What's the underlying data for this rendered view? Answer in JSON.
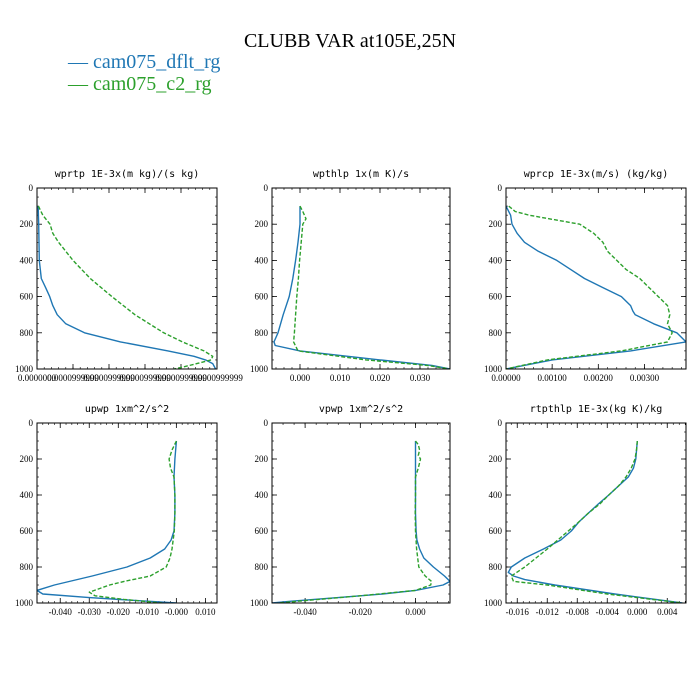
{
  "chart_data": {
    "title": "CLUBB VAR at105E,25N",
    "legend": [
      {
        "name": "cam075_dflt_rg",
        "color": "#1f77b4",
        "style": "solid"
      },
      {
        "name": "cam075_c2_rg",
        "color": "#2ca02c",
        "style": "dashed"
      }
    ],
    "ylim": [
      0,
      1000
    ],
    "yticks": [
      0,
      200,
      400,
      600,
      800,
      1000
    ],
    "y_inverted": true,
    "panels": [
      {
        "type": "line",
        "title": "wprtp  1E-3x(m kg)/(s kg)",
        "xlim": [
          0.0,
          0.0125
        ],
        "xticks": [
          0.0,
          0.0025,
          0.005,
          0.0075,
          0.01,
          0.0125
        ],
        "xticklabels": [
          "0.0000000",
          "0.0000999999",
          "0.0000999999",
          "0.0000999999",
          "0.0000999999",
          "0.0000999999"
        ],
        "series": [
          {
            "name": "cam075_dflt_rg",
            "y": [
              100,
              150,
              200,
              300,
              400,
              500,
              550,
              600,
              650,
              700,
              750,
              800,
              850,
              900,
              930,
              950,
              970,
              1000
            ],
            "x": [
              8e-05,
              0.0001,
              0.00012,
              0.00014,
              0.00016,
              0.0003,
              0.0006,
              0.00088,
              0.0011,
              0.0014,
              0.002,
              0.0033,
              0.0058,
              0.0091,
              0.0109,
              0.0117,
              0.0122,
              0.0124
            ]
          },
          {
            "name": "cam075_c2_rg",
            "y": [
              100,
              150,
              200,
              250,
              300,
              400,
              500,
              600,
              700,
              800,
              850,
              900,
              930,
              950,
              970,
              990,
              1000
            ],
            "x": [
              0.0001,
              0.0004,
              0.0009,
              0.0011,
              0.0015,
              0.0025,
              0.0037,
              0.0052,
              0.0068,
              0.0088,
              0.0101,
              0.0116,
              0.0122,
              0.0121,
              0.0111,
              0.0101,
              0.0095
            ]
          }
        ]
      },
      {
        "type": "line",
        "title": "wpthlp  1x(m K)/s",
        "xlim": [
          -0.007,
          0.0375
        ],
        "xticks": [
          0.0,
          0.01,
          0.02,
          0.03
        ],
        "xticklabels": [
          "0.000",
          "0.010",
          "0.020",
          "0.030"
        ],
        "series": [
          {
            "name": "cam075_dflt_rg",
            "y": [
              100,
              200,
              300,
              400,
              500,
              600,
              700,
              800,
              850,
              870,
              900,
              950,
              980,
              1000
            ],
            "x": [
              0.0,
              0.0,
              -0.0005,
              -0.0011,
              -0.0018,
              -0.0027,
              -0.0042,
              -0.0055,
              -0.0065,
              -0.0062,
              0.0,
              0.02,
              0.033,
              0.0375
            ]
          },
          {
            "name": "cam075_c2_rg",
            "y": [
              100,
              130,
              170,
              200,
              300,
              400,
              500,
              600,
              700,
              800,
              850,
              900,
              950,
              980,
              1000
            ],
            "x": [
              0.0,
              0.0007,
              0.0015,
              0.0007,
              0.0003,
              -0.0001,
              -0.0004,
              -0.0008,
              -0.0011,
              -0.0014,
              -0.0016,
              -0.0005,
              0.0165,
              0.0318,
              0.0375
            ]
          }
        ]
      },
      {
        "type": "line",
        "title": "wprcp  1E-3x(m/s) (kg/kg)",
        "xlim": [
          0.0,
          0.0039
        ],
        "xticks": [
          0.0,
          0.001,
          0.002,
          0.003
        ],
        "xticklabels": [
          "0.00000",
          "0.00100",
          "0.00200",
          "0.00300"
        ],
        "series": [
          {
            "name": "cam075_dflt_rg",
            "y": [
              100,
              150,
              200,
              250,
              300,
              350,
              400,
              450,
              500,
              550,
              600,
              650,
              680,
              700,
              750,
              800,
              850,
              900,
              950,
              1000
            ],
            "x": [
              0.0,
              0.0001,
              0.00013,
              0.00024,
              0.0004,
              0.0007,
              0.0011,
              0.0014,
              0.0017,
              0.0021,
              0.0025,
              0.0027,
              0.00275,
              0.0028,
              0.0032,
              0.0037,
              0.0039,
              0.0027,
              0.001,
              0.0
            ]
          },
          {
            "name": "cam075_c2_rg",
            "y": [
              100,
              130,
              150,
              200,
              250,
              300,
              350,
              400,
              450,
              500,
              550,
              600,
              650,
              700,
              750,
              800,
              850,
              900,
              950,
              1000
            ],
            "x": [
              6e-05,
              0.0002,
              0.0005,
              0.0016,
              0.0019,
              0.0021,
              0.0022,
              0.0024,
              0.0026,
              0.0029,
              0.0031,
              0.0033,
              0.0035,
              0.00355,
              0.0035,
              0.0036,
              0.0035,
              0.0025,
              0.0009,
              0.0
            ]
          }
        ]
      },
      {
        "type": "line",
        "title": "upwp  1xm^2/s^2",
        "xlim": [
          -0.048,
          0.014
        ],
        "xticks": [
          -0.04,
          -0.03,
          -0.02,
          -0.01,
          0.0,
          0.01
        ],
        "xticklabels": [
          "-0.040",
          "-0.030",
          "-0.020",
          "-0.010",
          "-0.000",
          "0.010"
        ],
        "series": [
          {
            "name": "cam075_dflt_rg",
            "y": [
              100,
              200,
              300,
              400,
              500,
              600,
              650,
              700,
              750,
              800,
              850,
              900,
              930,
              950,
              970,
              990,
              1000
            ],
            "x": [
              0.0,
              -0.0005,
              -0.0008,
              -0.0005,
              -0.0005,
              -0.0008,
              -0.0018,
              -0.004,
              -0.009,
              -0.017,
              -0.029,
              -0.042,
              -0.048,
              -0.046,
              -0.03,
              -0.01,
              0.0
            ]
          },
          {
            "name": "cam075_c2_rg",
            "y": [
              100,
              150,
              200,
              250,
              300,
              400,
              500,
              600,
              700,
              750,
              800,
              850,
              880,
              900,
              940,
              960,
              980,
              1000
            ],
            "x": [
              0.0,
              -0.0015,
              -0.0025,
              -0.002,
              -0.0008,
              -0.0005,
              -0.0005,
              -0.0007,
              -0.0015,
              -0.0022,
              -0.0035,
              -0.009,
              -0.018,
              -0.023,
              -0.03,
              -0.028,
              -0.018,
              -0.005
            ]
          }
        ]
      },
      {
        "type": "line",
        "title": "vpwp  1xm^2/s^2",
        "xlim": [
          -0.052,
          0.0125
        ],
        "xticks": [
          -0.04,
          -0.02,
          0.0
        ],
        "xticklabels": [
          "-0.040",
          "-0.020",
          "0.000"
        ],
        "series": [
          {
            "name": "cam075_dflt_rg",
            "y": [
              100,
              200,
              300,
              400,
              500,
              600,
              650,
              700,
              750,
              800,
              850,
              880,
              900,
              930,
              950,
              970,
              990,
              1000
            ],
            "x": [
              0.0,
              0.0,
              0.0,
              0.0,
              0.0,
              0.0002,
              0.0005,
              0.0015,
              0.003,
              0.0065,
              0.0105,
              0.0125,
              0.01,
              0.0,
              -0.012,
              -0.028,
              -0.045,
              -0.052
            ]
          },
          {
            "name": "cam075_c2_rg",
            "y": [
              100,
              120,
              150,
              180,
              200,
              250,
              300,
              400,
              500,
              600,
              700,
              800,
              850,
              880,
              900,
              930,
              960,
              1000
            ],
            "x": [
              0.0,
              0.001,
              0.0015,
              0.001,
              0.0018,
              0.001,
              0.0,
              0.0,
              -0.0001,
              0.0,
              0.0004,
              0.0012,
              0.0035,
              0.0058,
              0.0055,
              0.0,
              -0.02,
              -0.05
            ]
          }
        ]
      },
      {
        "type": "line",
        "title": "rtpthlp  1E-3x(kg K)/kg",
        "xlim": [
          -0.0175,
          0.0065
        ],
        "xticks": [
          -0.016,
          -0.012,
          -0.008,
          -0.004,
          0.0,
          0.004
        ],
        "xticklabels": [
          "-0.016",
          "-0.012",
          "-0.008",
          "-0.004",
          "0.000",
          "0.004"
        ],
        "series": [
          {
            "name": "cam075_dflt_rg",
            "y": [
              100,
              200,
              250,
              300,
              350,
              400,
              450,
              500,
              550,
              600,
              650,
              700,
              750,
              800,
              830,
              850,
              870,
              900,
              950,
              1000
            ],
            "x": [
              0.0,
              -0.0002,
              -0.0005,
              -0.0012,
              -0.0025,
              -0.0038,
              -0.0052,
              -0.0065,
              -0.0078,
              -0.0088,
              -0.0102,
              -0.0125,
              -0.015,
              -0.0168,
              -0.0172,
              -0.0165,
              -0.015,
              -0.011,
              -0.003,
              0.006
            ]
          },
          {
            "name": "cam075_c2_rg",
            "y": [
              100,
              150,
              200,
              250,
              300,
              350,
              400,
              450,
              500,
              550,
              600,
              650,
              700,
              750,
              800,
              850,
              880,
              900,
              950,
              1000
            ],
            "x": [
              0.0,
              -0.0001,
              -0.0003,
              -0.0008,
              -0.0015,
              -0.0025,
              -0.0038,
              -0.005,
              -0.0065,
              -0.0078,
              -0.0092,
              -0.0106,
              -0.012,
              -0.0135,
              -0.015,
              -0.0168,
              -0.0165,
              -0.012,
              -0.004,
              0.006
            ]
          }
        ]
      }
    ]
  }
}
